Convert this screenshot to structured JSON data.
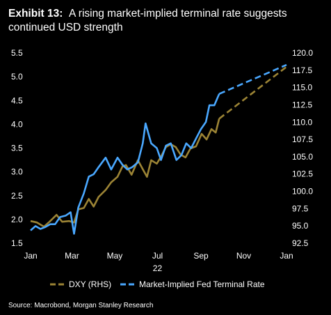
{
  "header": {
    "exhibit": "Exhibit 13:",
    "title": "A rising market-implied terminal rate suggests continued USD strength"
  },
  "source": "Source: Macrobond, Morgan Stanley Research",
  "colors": {
    "background": "#000000",
    "dxy": "#9c8435",
    "fed": "#4aa8ff",
    "text": "#ffffff"
  },
  "chart_data": {
    "type": "line",
    "title": "A rising market-implied terminal rate suggests continued USD strength",
    "x_ticks": [
      "Jan",
      "Mar",
      "May",
      "Jul",
      "Sep",
      "Nov",
      "Jan"
    ],
    "x_year_label": "22",
    "xlim": [
      "2022-01-01",
      "2023-01-01"
    ],
    "y_left": {
      "ticks": [
        "1.5",
        "2.0",
        "2.5",
        "3.0",
        "3.5",
        "4.0",
        "4.5",
        "5.0",
        "5.5"
      ],
      "lim": [
        1.5,
        5.5
      ]
    },
    "y_right": {
      "ticks": [
        "92.5",
        "95.0",
        "97.5",
        "100.0",
        "102.5",
        "105.0",
        "107.5",
        "110.0",
        "112.5",
        "115.0",
        "117.5",
        "120.0"
      ],
      "lim": [
        92.5,
        120.0
      ]
    },
    "legend_position": "bottom",
    "series": [
      {
        "name": "DXY (RHS)",
        "axis": "right",
        "color": "#9c8435",
        "values": [
          [
            "2022-01-01",
            95.7
          ],
          [
            "2022-01-10",
            95.5
          ],
          [
            "2022-01-20",
            94.9
          ],
          [
            "2022-01-28",
            95.6
          ],
          [
            "2022-02-07",
            96.6
          ],
          [
            "2022-02-15",
            95.6
          ],
          [
            "2022-02-25",
            95.7
          ],
          [
            "2022-03-04",
            95.5
          ],
          [
            "2022-03-10",
            97.4
          ],
          [
            "2022-03-18",
            97.6
          ],
          [
            "2022-03-25",
            98.9
          ],
          [
            "2022-04-01",
            97.8
          ],
          [
            "2022-04-08",
            99.2
          ],
          [
            "2022-04-18",
            100.2
          ],
          [
            "2022-04-26",
            101.3
          ],
          [
            "2022-05-05",
            102.1
          ],
          [
            "2022-05-12",
            103.6
          ],
          [
            "2022-05-17",
            103.8
          ],
          [
            "2022-05-25",
            102.4
          ],
          [
            "2022-06-03",
            104.5
          ],
          [
            "2022-06-10",
            103.2
          ],
          [
            "2022-06-16",
            102.1
          ],
          [
            "2022-06-22",
            104.5
          ],
          [
            "2022-06-30",
            104.0
          ],
          [
            "2022-07-06",
            105.0
          ],
          [
            "2022-07-13",
            106.4
          ],
          [
            "2022-07-20",
            106.8
          ],
          [
            "2022-07-27",
            106.4
          ],
          [
            "2022-08-03",
            105.3
          ],
          [
            "2022-08-10",
            104.9
          ],
          [
            "2022-08-17",
            106.2
          ],
          [
            "2022-08-25",
            106.5
          ],
          [
            "2022-09-02",
            108.3
          ],
          [
            "2022-09-09",
            107.5
          ],
          [
            "2022-09-16",
            109.0
          ],
          [
            "2022-09-22",
            108.5
          ],
          [
            "2022-09-27",
            110.5
          ]
        ],
        "projection": [
          [
            "2022-09-27",
            110.5
          ],
          [
            "2023-01-01",
            118.0
          ]
        ]
      },
      {
        "name": "Market-Implied Fed Terminal Rate",
        "axis": "left",
        "color": "#4aa8ff",
        "values": [
          [
            "2022-01-01",
            1.77
          ],
          [
            "2022-01-08",
            1.86
          ],
          [
            "2022-01-15",
            1.8
          ],
          [
            "2022-01-22",
            1.84
          ],
          [
            "2022-01-29",
            1.9
          ],
          [
            "2022-02-05",
            1.9
          ],
          [
            "2022-02-12",
            2.05
          ],
          [
            "2022-02-20",
            2.08
          ],
          [
            "2022-02-27",
            2.15
          ],
          [
            "2022-03-04",
            1.7
          ],
          [
            "2022-03-10",
            2.25
          ],
          [
            "2022-03-18",
            2.55
          ],
          [
            "2022-03-25",
            2.9
          ],
          [
            "2022-04-01",
            2.95
          ],
          [
            "2022-04-08",
            3.1
          ],
          [
            "2022-04-18",
            3.3
          ],
          [
            "2022-04-26",
            3.05
          ],
          [
            "2022-05-05",
            3.3
          ],
          [
            "2022-05-12",
            3.15
          ],
          [
            "2022-05-19",
            3.05
          ],
          [
            "2022-05-26",
            3.1
          ],
          [
            "2022-06-03",
            3.2
          ],
          [
            "2022-06-10",
            3.6
          ],
          [
            "2022-06-14",
            4.02
          ],
          [
            "2022-06-22",
            3.6
          ],
          [
            "2022-06-30",
            3.5
          ],
          [
            "2022-07-06",
            3.25
          ],
          [
            "2022-07-13",
            3.55
          ],
          [
            "2022-07-20",
            3.6
          ],
          [
            "2022-07-28",
            3.25
          ],
          [
            "2022-08-04",
            3.35
          ],
          [
            "2022-08-11",
            3.6
          ],
          [
            "2022-08-18",
            3.5
          ],
          [
            "2022-08-25",
            3.7
          ],
          [
            "2022-09-01",
            3.9
          ],
          [
            "2022-09-08",
            4.05
          ],
          [
            "2022-09-13",
            4.4
          ],
          [
            "2022-09-20",
            4.4
          ],
          [
            "2022-09-27",
            4.64
          ]
        ],
        "projection": [
          [
            "2022-09-27",
            4.64
          ],
          [
            "2023-01-01",
            5.25
          ]
        ]
      }
    ]
  }
}
